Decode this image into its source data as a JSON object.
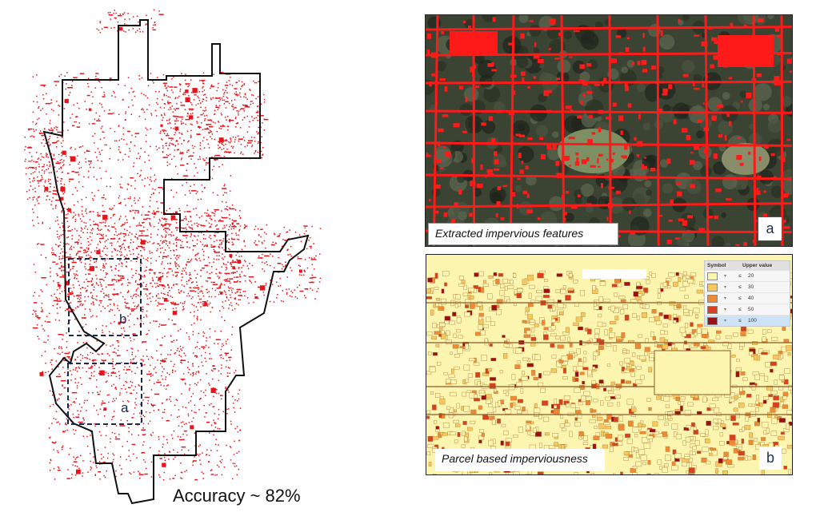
{
  "left_map": {
    "accuracy_label": "Accuracy ~ 82%",
    "boxes": [
      {
        "label": "b"
      },
      {
        "label": "a"
      }
    ],
    "colors": {
      "impervious": "#e8141b",
      "boundary": "#111111",
      "box": "#1b2a4e"
    }
  },
  "panel_a": {
    "caption": "Extracted impervious features",
    "letter": "a",
    "colors": {
      "background": "#3b4332",
      "impervious": "#ff1a1a"
    }
  },
  "panel_b": {
    "caption": "Parcel based imperviousness",
    "letter": "b",
    "legend": {
      "headers": [
        "Symbol",
        "Upper value"
      ],
      "rows": [
        {
          "op": "≤",
          "value": "20",
          "color": "#fbf5b0"
        },
        {
          "op": "≤",
          "value": "30",
          "color": "#f7c95a"
        },
        {
          "op": "≤",
          "value": "40",
          "color": "#ef8a32"
        },
        {
          "op": "≤",
          "value": "50",
          "color": "#d8401e"
        },
        {
          "op": "≤",
          "value": "100",
          "color": "#9b0f16"
        }
      ]
    }
  }
}
